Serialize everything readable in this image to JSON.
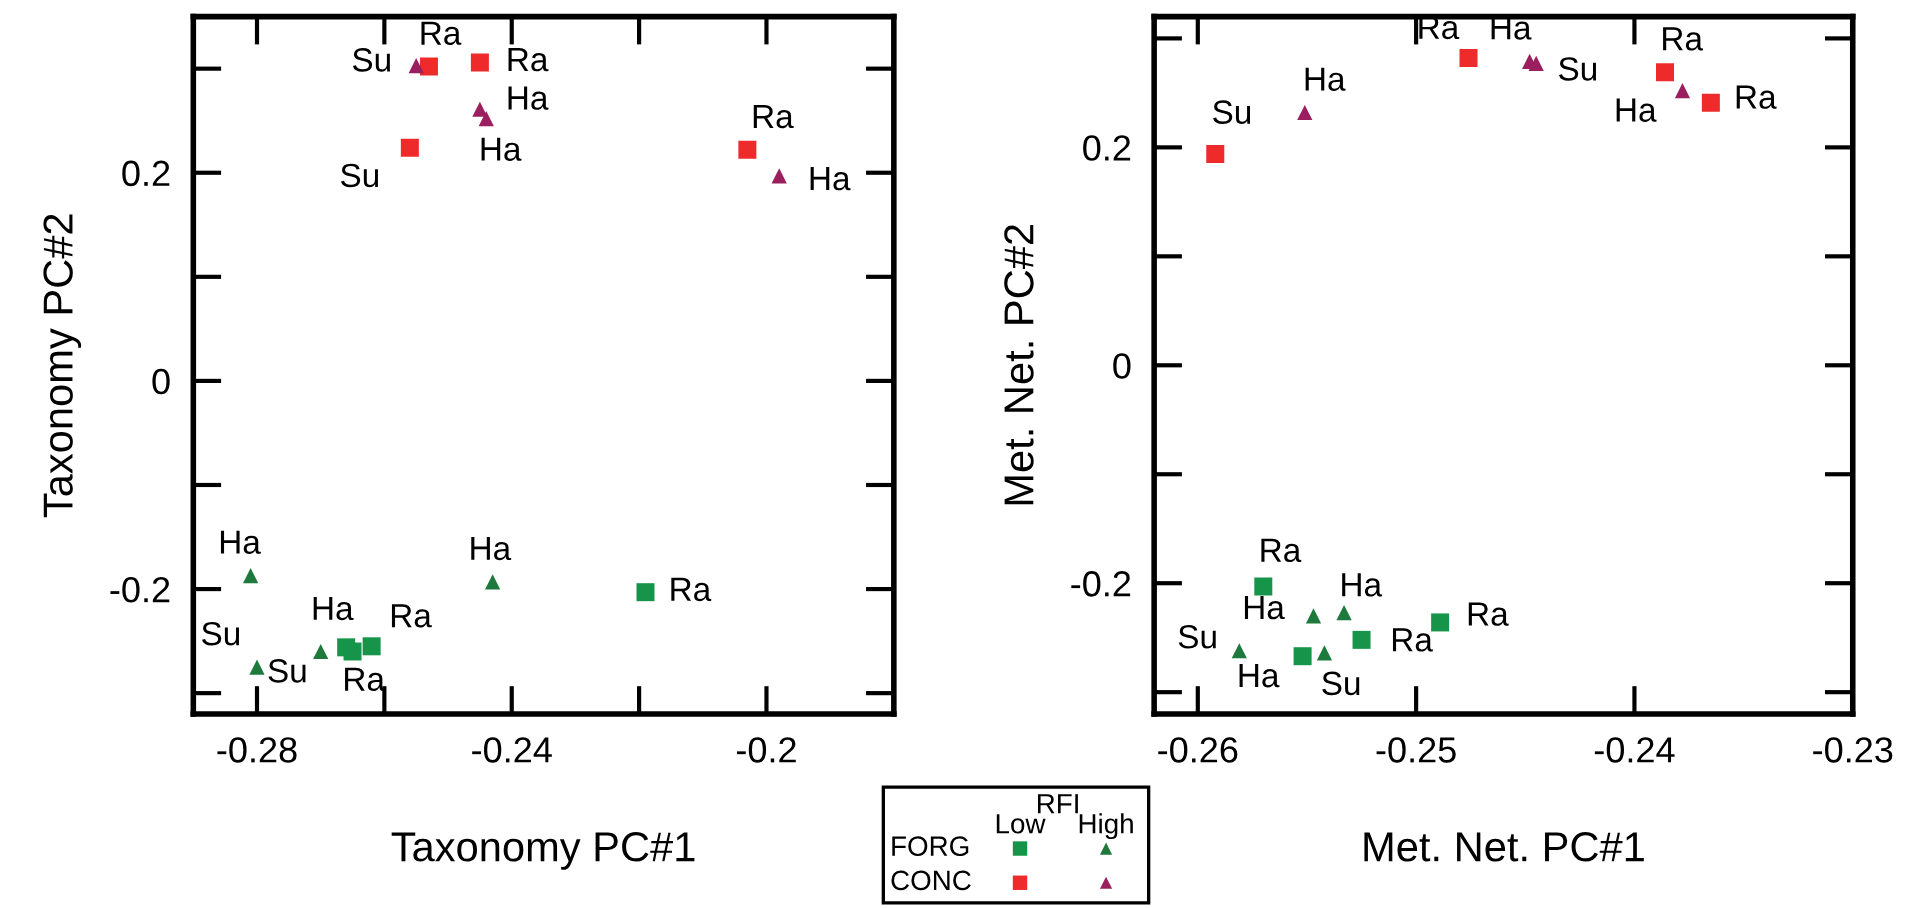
{
  "chart_data": [
    {
      "type": "scatter",
      "xlabel": "Taxonomy PC#1",
      "ylabel": "Taxonomy PC#2",
      "xlim": [
        -0.29,
        -0.18
      ],
      "ylim": [
        -0.32,
        0.35
      ],
      "xticks": [
        -0.28,
        {
          "value": -0.26,
          "label": null
        },
        -0.24,
        {
          "value": -0.22,
          "label": null
        },
        -0.2
      ],
      "yticks": [
        {
          "value": -0.3,
          "label": null
        },
        -0.2,
        {
          "value": -0.1,
          "label": null
        },
        0,
        {
          "value": 0.1,
          "label": null
        },
        0.2,
        {
          "value": 0.3,
          "label": null
        }
      ],
      "legend_title": "RFI",
      "series": [
        {
          "color": "#16954a",
          "marker": "square",
          "x": [
            -0.266,
            -0.265,
            -0.262,
            -0.219
          ],
          "values": [
            -0.256,
            -0.26,
            -0.255,
            -0.203
          ],
          "value_labels": [
            "Ha",
            "Ra",
            "Ra",
            "Ra"
          ]
        },
        {
          "color": "#ee2a2a",
          "marker": "square",
          "x": [
            -0.253,
            -0.245,
            -0.256,
            -0.203
          ],
          "values": [
            0.302,
            0.306,
            0.224,
            0.222
          ],
          "value_labels": [
            "Ra",
            "Ra",
            "Su",
            "Ra"
          ]
        },
        {
          "color": "#1e7a3c",
          "marker": "triangle",
          "x": [
            -0.281,
            -0.28,
            -0.27,
            -0.243
          ],
          "values": [
            -0.187,
            -0.275,
            -0.26,
            -0.193
          ],
          "value_labels": [
            "Ha",
            "Su",
            "Su",
            "Ha"
          ]
        },
        {
          "color": "#9b1f5e",
          "marker": "triangle",
          "x": [
            -0.255,
            -0.245,
            -0.244,
            -0.198
          ],
          "values": [
            0.303,
            0.261,
            0.252,
            0.197
          ],
          "value_labels": [
            "Su",
            "Ha",
            "Ha",
            "Ha"
          ]
        }
      ],
      "annotations": [
        "FORG",
        "CONC",
        "Low",
        "High"
      ]
    },
    {
      "type": "scatter",
      "xlabel": "Met. Net. PC#1",
      "ylabel": "Met. Net. PC#2",
      "xlim": [
        -0.262,
        -0.23
      ],
      "ylim": [
        -0.32,
        0.32
      ],
      "xticks": [
        -0.26,
        -0.25,
        -0.24,
        -0.23
      ],
      "yticks": [
        {
          "value": -0.3,
          "label": null
        },
        -0.2,
        {
          "value": -0.1,
          "label": null
        },
        0,
        {
          "value": 0.1,
          "label": null
        },
        0.2,
        {
          "value": 0.3,
          "label": null
        }
      ],
      "series": [
        {
          "color": "#16954a",
          "marker": "square",
          "x": [
            -0.257,
            -0.2552,
            -0.2525,
            -0.2489
          ],
          "values": [
            -0.203,
            -0.267,
            -0.252,
            -0.236
          ],
          "value_labels": [
            "Ra",
            "Ha",
            "Ra",
            "Ra"
          ]
        },
        {
          "color": "#ee2a2a",
          "marker": "square",
          "x": [
            -0.2592,
            -0.2476,
            -0.2386,
            -0.2365
          ],
          "values": [
            0.194,
            0.282,
            0.269,
            0.241
          ],
          "value_labels": [
            "Su",
            "Ra",
            "Ra",
            "Ra"
          ]
        },
        {
          "color": "#1e7a3c",
          "marker": "triangle",
          "x": [
            -0.2581,
            -0.2547,
            -0.2533,
            -0.2542
          ],
          "values": [
            -0.262,
            -0.23,
            -0.227,
            -0.264
          ],
          "value_labels": [
            "Su",
            "Ha",
            "Ha",
            "Su"
          ]
        },
        {
          "color": "#9b1f5e",
          "marker": "triangle",
          "x": [
            -0.2551,
            -0.2448,
            -0.2445,
            -0.2378
          ],
          "values": [
            0.232,
            0.279,
            0.277,
            0.252
          ],
          "value_labels": [
            "Ha",
            "Ha",
            "Su",
            "Ha"
          ]
        }
      ]
    }
  ]
}
